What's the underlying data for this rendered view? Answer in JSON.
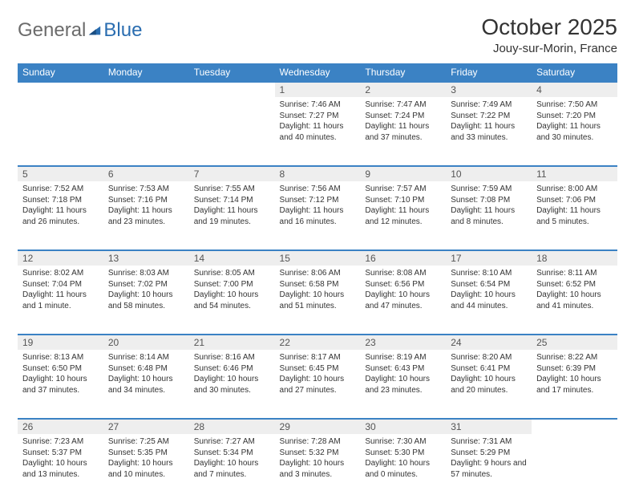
{
  "logo": {
    "text1": "General",
    "text2": "Blue"
  },
  "title": "October 2025",
  "location": "Jouy-sur-Morin, France",
  "colors": {
    "header_bg": "#3b82c4",
    "header_text": "#ffffff",
    "daynum_bg": "#eeeeee",
    "border": "#3b82c4",
    "body_text": "#333333",
    "logo_gray": "#6b6b6b",
    "logo_blue": "#2a6db0"
  },
  "day_headers": [
    "Sunday",
    "Monday",
    "Tuesday",
    "Wednesday",
    "Thursday",
    "Friday",
    "Saturday"
  ],
  "weeks": [
    {
      "nums": [
        "",
        "",
        "",
        "1",
        "2",
        "3",
        "4"
      ],
      "cells": [
        null,
        null,
        null,
        {
          "sr": "7:46 AM",
          "ss": "7:27 PM",
          "dl": "11 hours and 40 minutes."
        },
        {
          "sr": "7:47 AM",
          "ss": "7:24 PM",
          "dl": "11 hours and 37 minutes."
        },
        {
          "sr": "7:49 AM",
          "ss": "7:22 PM",
          "dl": "11 hours and 33 minutes."
        },
        {
          "sr": "7:50 AM",
          "ss": "7:20 PM",
          "dl": "11 hours and 30 minutes."
        }
      ]
    },
    {
      "nums": [
        "5",
        "6",
        "7",
        "8",
        "9",
        "10",
        "11"
      ],
      "cells": [
        {
          "sr": "7:52 AM",
          "ss": "7:18 PM",
          "dl": "11 hours and 26 minutes."
        },
        {
          "sr": "7:53 AM",
          "ss": "7:16 PM",
          "dl": "11 hours and 23 minutes."
        },
        {
          "sr": "7:55 AM",
          "ss": "7:14 PM",
          "dl": "11 hours and 19 minutes."
        },
        {
          "sr": "7:56 AM",
          "ss": "7:12 PM",
          "dl": "11 hours and 16 minutes."
        },
        {
          "sr": "7:57 AM",
          "ss": "7:10 PM",
          "dl": "11 hours and 12 minutes."
        },
        {
          "sr": "7:59 AM",
          "ss": "7:08 PM",
          "dl": "11 hours and 8 minutes."
        },
        {
          "sr": "8:00 AM",
          "ss": "7:06 PM",
          "dl": "11 hours and 5 minutes."
        }
      ]
    },
    {
      "nums": [
        "12",
        "13",
        "14",
        "15",
        "16",
        "17",
        "18"
      ],
      "cells": [
        {
          "sr": "8:02 AM",
          "ss": "7:04 PM",
          "dl": "11 hours and 1 minute."
        },
        {
          "sr": "8:03 AM",
          "ss": "7:02 PM",
          "dl": "10 hours and 58 minutes."
        },
        {
          "sr": "8:05 AM",
          "ss": "7:00 PM",
          "dl": "10 hours and 54 minutes."
        },
        {
          "sr": "8:06 AM",
          "ss": "6:58 PM",
          "dl": "10 hours and 51 minutes."
        },
        {
          "sr": "8:08 AM",
          "ss": "6:56 PM",
          "dl": "10 hours and 47 minutes."
        },
        {
          "sr": "8:10 AM",
          "ss": "6:54 PM",
          "dl": "10 hours and 44 minutes."
        },
        {
          "sr": "8:11 AM",
          "ss": "6:52 PM",
          "dl": "10 hours and 41 minutes."
        }
      ]
    },
    {
      "nums": [
        "19",
        "20",
        "21",
        "22",
        "23",
        "24",
        "25"
      ],
      "cells": [
        {
          "sr": "8:13 AM",
          "ss": "6:50 PM",
          "dl": "10 hours and 37 minutes."
        },
        {
          "sr": "8:14 AM",
          "ss": "6:48 PM",
          "dl": "10 hours and 34 minutes."
        },
        {
          "sr": "8:16 AM",
          "ss": "6:46 PM",
          "dl": "10 hours and 30 minutes."
        },
        {
          "sr": "8:17 AM",
          "ss": "6:45 PM",
          "dl": "10 hours and 27 minutes."
        },
        {
          "sr": "8:19 AM",
          "ss": "6:43 PM",
          "dl": "10 hours and 23 minutes."
        },
        {
          "sr": "8:20 AM",
          "ss": "6:41 PM",
          "dl": "10 hours and 20 minutes."
        },
        {
          "sr": "8:22 AM",
          "ss": "6:39 PM",
          "dl": "10 hours and 17 minutes."
        }
      ]
    },
    {
      "nums": [
        "26",
        "27",
        "28",
        "29",
        "30",
        "31",
        ""
      ],
      "cells": [
        {
          "sr": "7:23 AM",
          "ss": "5:37 PM",
          "dl": "10 hours and 13 minutes."
        },
        {
          "sr": "7:25 AM",
          "ss": "5:35 PM",
          "dl": "10 hours and 10 minutes."
        },
        {
          "sr": "7:27 AM",
          "ss": "5:34 PM",
          "dl": "10 hours and 7 minutes."
        },
        {
          "sr": "7:28 AM",
          "ss": "5:32 PM",
          "dl": "10 hours and 3 minutes."
        },
        {
          "sr": "7:30 AM",
          "ss": "5:30 PM",
          "dl": "10 hours and 0 minutes."
        },
        {
          "sr": "7:31 AM",
          "ss": "5:29 PM",
          "dl": "9 hours and 57 minutes."
        },
        null
      ]
    }
  ],
  "labels": {
    "sunrise": "Sunrise:",
    "sunset": "Sunset:",
    "daylight": "Daylight:"
  }
}
